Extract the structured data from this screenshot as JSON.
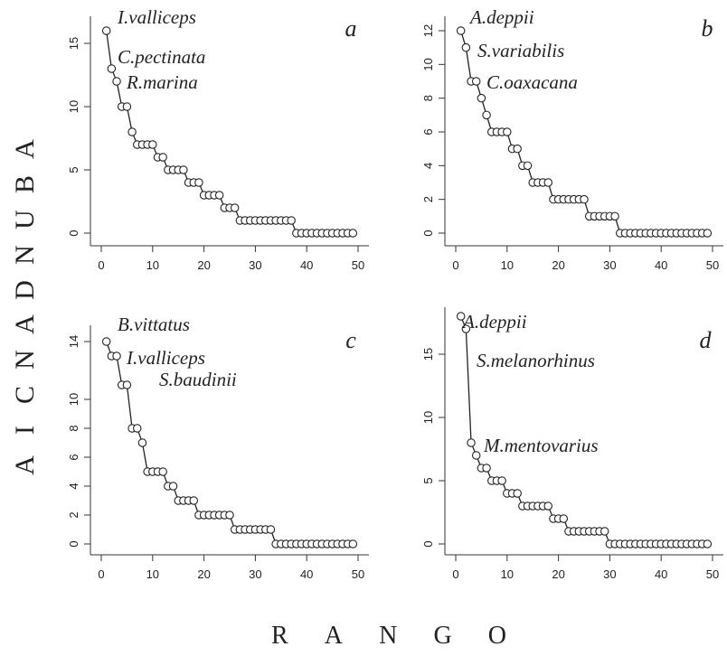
{
  "figure": {
    "ylabel_letters": [
      "A",
      "B",
      "U",
      "N",
      "D",
      "A",
      "N",
      "C",
      "I",
      "A"
    ],
    "xlabel_letters": [
      "R",
      "A",
      "N",
      "G",
      "O"
    ],
    "colors": {
      "line": "#222222",
      "axis": "#333333"
    }
  },
  "chart_data": [
    {
      "type": "line",
      "panel_label": "a",
      "xlim": [
        0,
        50
      ],
      "ylim": [
        0,
        16
      ],
      "x_ticks": [
        0,
        10,
        20,
        30,
        40,
        50
      ],
      "y_ticks": [
        0,
        5,
        10,
        15
      ],
      "grid": false,
      "annotations": [
        "I.valliceps",
        "C.pectinata",
        "R.marina"
      ],
      "x": [
        1,
        2,
        3,
        4,
        5,
        6,
        7,
        8,
        9,
        10,
        11,
        12,
        13,
        14,
        15,
        16,
        17,
        18,
        19,
        20,
        21,
        22,
        23,
        24,
        25,
        26,
        27,
        28,
        29,
        30,
        31,
        32,
        33,
        34,
        35,
        36,
        37,
        38,
        39,
        40,
        41,
        42,
        43,
        44,
        45,
        46,
        47,
        48,
        49
      ],
      "values": [
        16,
        13,
        12,
        10,
        10,
        8,
        7,
        7,
        7,
        7,
        6,
        6,
        5,
        5,
        5,
        5,
        4,
        4,
        4,
        3,
        3,
        3,
        3,
        2,
        2,
        2,
        1,
        1,
        1,
        1,
        1,
        1,
        1,
        1,
        1,
        1,
        1,
        0,
        0,
        0,
        0,
        0,
        0,
        0,
        0,
        0,
        0,
        0,
        0
      ]
    },
    {
      "type": "line",
      "panel_label": "b",
      "xlim": [
        0,
        50
      ],
      "ylim": [
        0,
        12
      ],
      "x_ticks": [
        0,
        10,
        20,
        30,
        40,
        50
      ],
      "y_ticks": [
        0,
        2,
        4,
        6,
        8,
        10,
        12
      ],
      "grid": false,
      "annotations": [
        "A.deppii",
        "S.variabilis",
        "C.oaxacana"
      ],
      "x": [
        1,
        2,
        3,
        4,
        5,
        6,
        7,
        8,
        9,
        10,
        11,
        12,
        13,
        14,
        15,
        16,
        17,
        18,
        19,
        20,
        21,
        22,
        23,
        24,
        25,
        26,
        27,
        28,
        29,
        30,
        31,
        32,
        33,
        34,
        35,
        36,
        37,
        38,
        39,
        40,
        41,
        42,
        43,
        44,
        45,
        46,
        47,
        48,
        49
      ],
      "values": [
        12,
        11,
        9,
        9,
        8,
        7,
        6,
        6,
        6,
        6,
        5,
        5,
        4,
        4,
        3,
        3,
        3,
        3,
        2,
        2,
        2,
        2,
        2,
        2,
        2,
        1,
        1,
        1,
        1,
        1,
        1,
        0,
        0,
        0,
        0,
        0,
        0,
        0,
        0,
        0,
        0,
        0,
        0,
        0,
        0,
        0,
        0,
        0,
        0
      ]
    },
    {
      "type": "line",
      "panel_label": "c",
      "xlim": [
        0,
        50
      ],
      "ylim": [
        0,
        14
      ],
      "x_ticks": [
        0,
        10,
        20,
        30,
        40,
        50
      ],
      "y_ticks": [
        0,
        2,
        4,
        6,
        8,
        10,
        14
      ],
      "grid": false,
      "annotations": [
        "B.vittatus",
        "I.valliceps",
        "S.baudinii"
      ],
      "x": [
        1,
        2,
        3,
        4,
        5,
        6,
        7,
        8,
        9,
        10,
        11,
        12,
        13,
        14,
        15,
        16,
        17,
        18,
        19,
        20,
        21,
        22,
        23,
        24,
        25,
        26,
        27,
        28,
        29,
        30,
        31,
        32,
        33,
        34,
        35,
        36,
        37,
        38,
        39,
        40,
        41,
        42,
        43,
        44,
        45,
        46,
        47,
        48,
        49
      ],
      "values": [
        14,
        13,
        13,
        11,
        11,
        8,
        8,
        7,
        5,
        5,
        5,
        5,
        4,
        4,
        3,
        3,
        3,
        3,
        2,
        2,
        2,
        2,
        2,
        2,
        2,
        1,
        1,
        1,
        1,
        1,
        1,
        1,
        1,
        0,
        0,
        0,
        0,
        0,
        0,
        0,
        0,
        0,
        0,
        0,
        0,
        0,
        0,
        0,
        0
      ]
    },
    {
      "type": "line",
      "panel_label": "d",
      "xlim": [
        0,
        50
      ],
      "ylim": [
        0,
        18
      ],
      "x_ticks": [
        0,
        10,
        20,
        30,
        40,
        50
      ],
      "y_ticks": [
        0,
        5,
        10,
        15
      ],
      "grid": false,
      "annotations": [
        "A.deppii",
        "S.melanorhinus",
        "M.mentovarius"
      ],
      "x": [
        1,
        2,
        3,
        4,
        5,
        6,
        7,
        8,
        9,
        10,
        11,
        12,
        13,
        14,
        15,
        16,
        17,
        18,
        19,
        20,
        21,
        22,
        23,
        24,
        25,
        26,
        27,
        28,
        29,
        30,
        31,
        32,
        33,
        34,
        35,
        36,
        37,
        38,
        39,
        40,
        41,
        42,
        43,
        44,
        45,
        46,
        47,
        48,
        49
      ],
      "values": [
        18,
        17,
        8,
        7,
        6,
        6,
        5,
        5,
        5,
        4,
        4,
        4,
        3,
        3,
        3,
        3,
        3,
        3,
        2,
        2,
        2,
        1,
        1,
        1,
        1,
        1,
        1,
        1,
        1,
        0,
        0,
        0,
        0,
        0,
        0,
        0,
        0,
        0,
        0,
        0,
        0,
        0,
        0,
        0,
        0,
        0,
        0,
        0,
        0
      ]
    }
  ]
}
